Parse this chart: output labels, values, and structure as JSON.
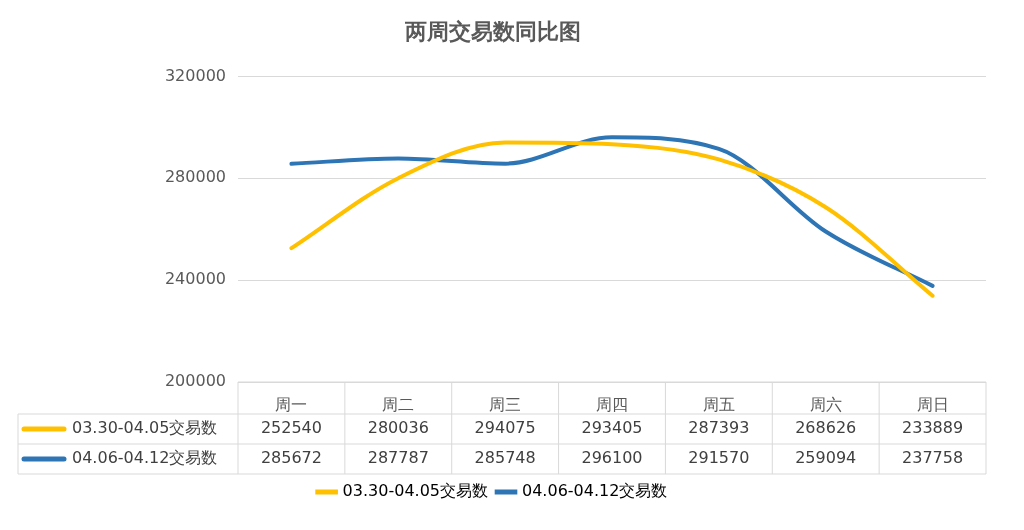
{
  "chart_data": {
    "type": "line",
    "title": "两周交易数同比图",
    "categories": [
      "周一",
      "周二",
      "周三",
      "周四",
      "周五",
      "周六",
      "周日"
    ],
    "series": [
      {
        "name": "03.30-04.05交易数",
        "color": "#ffc000",
        "values": [
          252540,
          280036,
          294075,
          293405,
          287393,
          268626,
          233889
        ]
      },
      {
        "name": "04.06-04.12交易数",
        "color": "#2e75b6",
        "values": [
          285672,
          287787,
          285748,
          296100,
          291570,
          259094,
          237758
        ]
      }
    ],
    "ylim": [
      200000,
      320000
    ],
    "yticks": [
      200000,
      240000,
      280000,
      320000
    ],
    "grid": "y",
    "legend": "bottom",
    "marker": "none",
    "line_style": "solid",
    "data_labels": true
  }
}
